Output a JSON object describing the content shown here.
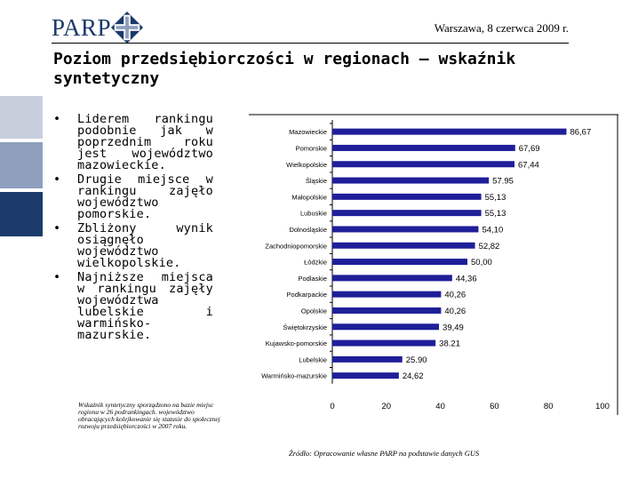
{
  "header": {
    "logo_text": "PARP",
    "date": "Warszawa, 8 czerwca 2009 r."
  },
  "title": "Poziom przedsiębiorczości w regionach – wskaźnik syntetyczny",
  "bullets": [
    "Liderem rankingu podobnie jak w poprzednim roku jest województwo mazowieckie.",
    "Drugie miejsce w rankingu zajęło województwo pomorskie.",
    "Zbliżony wynik osiągnęło województwo wielkopolskie.",
    "Najniższe miejsca w rankingu zajęły województwa lubelskie i warmińsko-mazurskie."
  ],
  "footnote": "Wskaźnik syntetyczny sporządzono na bazie miejsc regionu w 26 podrankingach. województwo obracających kolejkowanie się statusie do społecznej rozwoju przedsiębiorczości w 2007 roku.",
  "source": "Źródło: Opracowanie własne PARP na podstawie danych GUS",
  "colors": {
    "brand": "#1b3a6b",
    "bar": "#1f1f99"
  },
  "chart_data": {
    "type": "bar",
    "orientation": "horizontal",
    "categories": [
      "Mazowieckie",
      "Pomorskie",
      "Wielkopolskie",
      "Śląskie",
      "Małopolskie",
      "Lubuskie",
      "Dolnośląskie",
      "Zachodniopomorskie",
      "Łódzkie",
      "Podlaskie",
      "Podkarpackie",
      "Opolskie",
      "Świętokrzyskie",
      "Kujawsko-pomorskie",
      "Lubelskie",
      "Warmińsko-mazurskie"
    ],
    "values": [
      86.67,
      67.69,
      67.44,
      57.95,
      55.13,
      55.13,
      54.1,
      52.82,
      50.0,
      44.36,
      40.26,
      40.26,
      39.49,
      38.21,
      25.9,
      24.62
    ],
    "value_labels": [
      "86,67",
      "67,69",
      "67,44",
      "57.95",
      "55,13",
      "55,13",
      "54,10",
      "52,82",
      "50,00",
      "44,36",
      "40,26",
      "40,26",
      "39,49",
      "38.21",
      "25.90",
      "24,62"
    ],
    "xlim": [
      0,
      100
    ],
    "xticks": [
      "0",
      "20",
      "40",
      "60",
      "80",
      "100"
    ],
    "grid": false,
    "legend": "none"
  }
}
